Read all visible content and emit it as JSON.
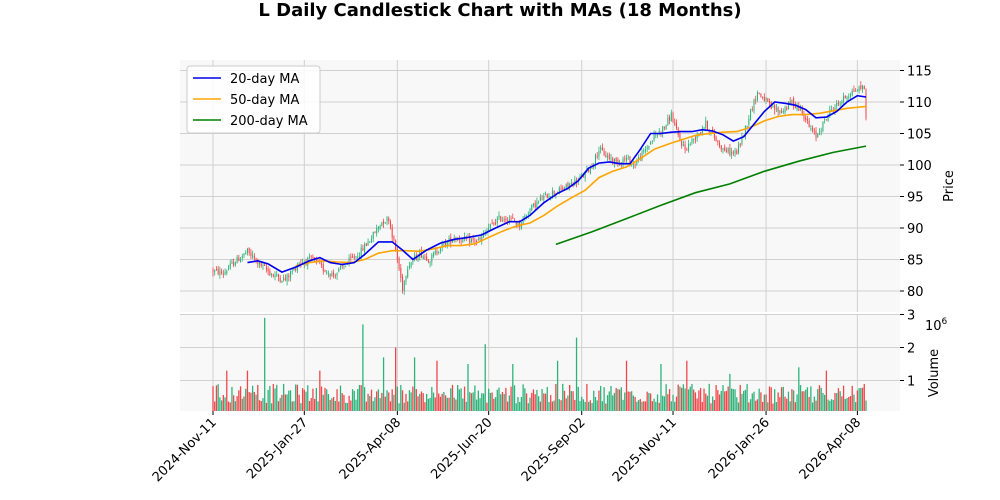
{
  "title": "L Daily Candlestick Chart with MAs (18 Months)",
  "colors": {
    "up": "#2db37a",
    "down": "#f0464a",
    "ma20": "#0000ee",
    "ma50": "#ffa500",
    "ma200": "#008000",
    "panel_bg": "#f8f8f8",
    "grid": "#d0d0d0"
  },
  "chart_data": {
    "type": "candlestick",
    "x_tick_labels": [
      "2024-Nov-11",
      "2025-Jan-27",
      "2025-Apr-08",
      "2025-Jun-20",
      "2025-Sep-02",
      "2025-Nov-11",
      "2026-Jan-26",
      "2026-Apr-08"
    ],
    "price_axis": {
      "label": "Price",
      "ylim": [
        76,
        116.5
      ],
      "ticks": [
        80,
        85,
        90,
        95,
        100,
        105,
        110,
        115
      ]
    },
    "volume_axis": {
      "label": "Volume",
      "exponent_label": "1e6",
      "ylim": [
        0,
        3.0
      ],
      "ticks": [
        1,
        2,
        3
      ]
    },
    "legend": {
      "placement": "top-left",
      "entries": [
        "20-day MA",
        "50-day MA",
        "200-day MA"
      ]
    },
    "grid": true,
    "price_path_keypoints": [
      [
        0,
        83.2
      ],
      [
        6,
        82.8
      ],
      [
        12,
        84.5
      ],
      [
        20,
        86.2
      ],
      [
        28,
        84.0
      ],
      [
        35,
        82.5
      ],
      [
        42,
        81.8
      ],
      [
        50,
        84.5
      ],
      [
        58,
        85.0
      ],
      [
        64,
        83.5
      ],
      [
        70,
        82.5
      ],
      [
        78,
        84.5
      ],
      [
        85,
        86.0
      ],
      [
        92,
        88.5
      ],
      [
        98,
        91.0
      ],
      [
        102,
        91.5
      ],
      [
        106,
        86.5
      ],
      [
        108,
        83.5
      ],
      [
        110,
        80.5
      ],
      [
        113,
        84.0
      ],
      [
        120,
        86.0
      ],
      [
        126,
        85.0
      ],
      [
        132,
        87.0
      ],
      [
        140,
        88.5
      ],
      [
        148,
        88.0
      ],
      [
        155,
        88.0
      ],
      [
        160,
        90.0
      ],
      [
        166,
        91.5
      ],
      [
        172,
        91.5
      ],
      [
        178,
        90.5
      ],
      [
        184,
        93.0
      ],
      [
        190,
        94.5
      ],
      [
        196,
        95.5
      ],
      [
        202,
        96.0
      ],
      [
        208,
        97.0
      ],
      [
        214,
        98.0
      ],
      [
        220,
        100.0
      ],
      [
        224,
        102.5
      ],
      [
        228,
        101.5
      ],
      [
        234,
        100.5
      ],
      [
        240,
        101.0
      ],
      [
        244,
        100.0
      ],
      [
        250,
        102.0
      ],
      [
        256,
        104.5
      ],
      [
        262,
        106.0
      ],
      [
        266,
        108.0
      ],
      [
        270,
        104.5
      ],
      [
        274,
        102.5
      ],
      [
        280,
        104.5
      ],
      [
        286,
        106.5
      ],
      [
        292,
        104.0
      ],
      [
        296,
        102.5
      ],
      [
        300,
        102.0
      ],
      [
        304,
        102.0
      ],
      [
        308,
        105.0
      ],
      [
        312,
        108.5
      ],
      [
        316,
        111.5
      ],
      [
        320,
        110.5
      ],
      [
        324,
        109.0
      ],
      [
        330,
        108.5
      ],
      [
        336,
        110.0
      ],
      [
        342,
        108.5
      ],
      [
        346,
        106.0
      ],
      [
        350,
        104.5
      ],
      [
        354,
        106.5
      ],
      [
        358,
        108.5
      ],
      [
        362,
        109.5
      ],
      [
        366,
        110.5
      ],
      [
        370,
        111.5
      ],
      [
        374,
        112.0
      ],
      [
        378,
        112.5
      ],
      [
        379,
        107.0
      ]
    ],
    "ma20_points": [
      [
        20,
        84.5
      ],
      [
        26,
        84.8
      ],
      [
        32,
        84.3
      ],
      [
        40,
        83.0
      ],
      [
        48,
        83.8
      ],
      [
        56,
        84.8
      ],
      [
        62,
        85.3
      ],
      [
        68,
        84.5
      ],
      [
        75,
        84.2
      ],
      [
        82,
        84.5
      ],
      [
        88,
        85.8
      ],
      [
        96,
        87.8
      ],
      [
        104,
        87.8
      ],
      [
        110,
        86.5
      ],
      [
        116,
        85.0
      ],
      [
        124,
        86.5
      ],
      [
        132,
        87.6
      ],
      [
        140,
        88.2
      ],
      [
        148,
        88.5
      ],
      [
        156,
        88.9
      ],
      [
        164,
        90.0
      ],
      [
        172,
        91.0
      ],
      [
        178,
        91.0
      ],
      [
        184,
        92.0
      ],
      [
        192,
        94.0
      ],
      [
        200,
        95.5
      ],
      [
        206,
        96.3
      ],
      [
        212,
        97.5
      ],
      [
        218,
        99.5
      ],
      [
        224,
        100.3
      ],
      [
        230,
        100.5
      ],
      [
        236,
        100.2
      ],
      [
        242,
        100.2
      ],
      [
        248,
        102.5
      ],
      [
        254,
        105.0
      ],
      [
        260,
        105.0
      ],
      [
        266,
        105.2
      ],
      [
        272,
        105.3
      ],
      [
        278,
        105.3
      ],
      [
        284,
        105.6
      ],
      [
        290,
        105.4
      ],
      [
        296,
        104.8
      ],
      [
        302,
        103.8
      ],
      [
        308,
        104.5
      ],
      [
        314,
        106.5
      ],
      [
        320,
        108.5
      ],
      [
        326,
        110.0
      ],
      [
        332,
        109.8
      ],
      [
        338,
        109.5
      ],
      [
        344,
        108.8
      ],
      [
        350,
        107.5
      ],
      [
        356,
        107.6
      ],
      [
        362,
        108.5
      ],
      [
        368,
        110.0
      ],
      [
        374,
        111.0
      ],
      [
        379,
        110.8
      ]
    ],
    "ma50_points": [
      [
        48,
        84.0
      ],
      [
        56,
        84.5
      ],
      [
        64,
        84.8
      ],
      [
        72,
        84.6
      ],
      [
        80,
        84.5
      ],
      [
        88,
        85.0
      ],
      [
        96,
        86.0
      ],
      [
        104,
        86.4
      ],
      [
        112,
        86.4
      ],
      [
        120,
        86.3
      ],
      [
        128,
        86.7
      ],
      [
        136,
        87.2
      ],
      [
        144,
        87.2
      ],
      [
        152,
        87.5
      ],
      [
        160,
        88.5
      ],
      [
        168,
        89.5
      ],
      [
        176,
        90.3
      ],
      [
        184,
        90.8
      ],
      [
        192,
        92.0
      ],
      [
        200,
        93.5
      ],
      [
        208,
        94.8
      ],
      [
        216,
        96.0
      ],
      [
        224,
        98.0
      ],
      [
        232,
        99.0
      ],
      [
        240,
        99.7
      ],
      [
        248,
        101.0
      ],
      [
        256,
        102.5
      ],
      [
        264,
        103.3
      ],
      [
        272,
        104.0
      ],
      [
        280,
        104.7
      ],
      [
        288,
        105.0
      ],
      [
        296,
        105.2
      ],
      [
        304,
        105.3
      ],
      [
        312,
        106.0
      ],
      [
        320,
        107.0
      ],
      [
        328,
        107.7
      ],
      [
        336,
        108.0
      ],
      [
        344,
        108.0
      ],
      [
        352,
        108.2
      ],
      [
        360,
        108.6
      ],
      [
        368,
        109.0
      ],
      [
        379,
        109.3
      ]
    ],
    "ma200_points": [
      [
        199,
        87.4
      ],
      [
        220,
        89.4
      ],
      [
        240,
        91.5
      ],
      [
        260,
        93.6
      ],
      [
        280,
        95.6
      ],
      [
        300,
        97.0
      ],
      [
        320,
        99.0
      ],
      [
        340,
        100.6
      ],
      [
        360,
        102.0
      ],
      [
        379,
        103.0
      ]
    ],
    "volume_spikes": [
      [
        8,
        1.3
      ],
      [
        20,
        1.3
      ],
      [
        30,
        2.9
      ],
      [
        62,
        1.3
      ],
      [
        87,
        2.7
      ],
      [
        99,
        1.7
      ],
      [
        106,
        2.0
      ],
      [
        117,
        1.7
      ],
      [
        130,
        1.6
      ],
      [
        148,
        1.5
      ],
      [
        158,
        2.1
      ],
      [
        174,
        1.5
      ],
      [
        200,
        1.6
      ],
      [
        211,
        2.3
      ],
      [
        240,
        1.6
      ],
      [
        260,
        1.5
      ],
      [
        275,
        1.6
      ],
      [
        300,
        1.2
      ],
      [
        340,
        1.4
      ],
      [
        356,
        1.3
      ]
    ],
    "volume_base_range": [
      0.3,
      0.9
    ]
  }
}
